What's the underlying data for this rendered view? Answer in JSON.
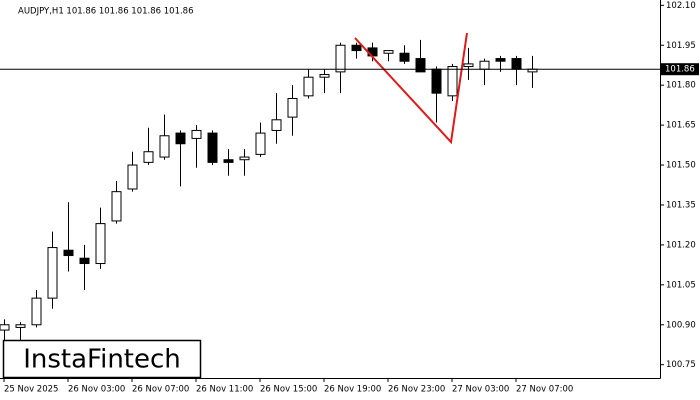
{
  "chart_data": {
    "type": "candlestick",
    "title": "AUDJPY,H1  101.86 101.86 101.86 101.86",
    "watermark": "InstaFintech",
    "categories": [
      "25 Nov 2025",
      null,
      null,
      null,
      "26 Nov 03:00",
      null,
      null,
      null,
      "26 Nov 07:00",
      null,
      null,
      null,
      "26 Nov 11:00",
      null,
      null,
      null,
      "26 Nov 15:00",
      null,
      null,
      null,
      "26 Nov 19:00",
      null,
      null,
      null,
      "26 Nov 23:00",
      null,
      null,
      null,
      "27 Nov 03:00",
      null,
      null,
      null,
      "27 Nov 07:00",
      null
    ],
    "open": [
      100.88,
      100.89,
      100.9,
      101.0,
      101.18,
      101.15,
      101.13,
      101.29,
      101.41,
      101.51,
      101.53,
      101.62,
      101.6,
      101.62,
      101.52,
      101.52,
      101.54,
      101.63,
      101.68,
      101.76,
      101.83,
      101.85,
      101.95,
      101.94,
      101.92,
      101.92,
      101.9,
      101.86,
      101.76,
      101.87,
      101.86,
      101.9,
      101.9,
      101.85
    ],
    "high": [
      100.92,
      100.91,
      101.03,
      101.25,
      101.36,
      101.2,
      101.34,
      101.44,
      101.55,
      101.64,
      101.69,
      101.63,
      101.65,
      101.63,
      101.56,
      101.56,
      101.66,
      101.77,
      101.8,
      101.86,
      101.86,
      101.96,
      101.96,
      101.96,
      101.93,
      101.95,
      101.97,
      101.87,
      101.88,
      101.94,
      101.9,
      101.91,
      101.91,
      101.91
    ],
    "low": [
      100.83,
      100.84,
      100.89,
      100.96,
      101.1,
      101.03,
      101.11,
      101.28,
      101.4,
      101.5,
      101.52,
      101.42,
      101.49,
      101.5,
      101.46,
      101.46,
      101.53,
      101.58,
      101.61,
      101.75,
      101.77,
      101.77,
      101.9,
      101.89,
      101.89,
      101.88,
      101.85,
      101.66,
      101.74,
      101.82,
      101.8,
      101.85,
      101.8,
      101.79
    ],
    "close": [
      100.9,
      100.9,
      101.0,
      101.19,
      101.16,
      101.13,
      101.28,
      101.4,
      101.5,
      101.55,
      101.61,
      101.58,
      101.63,
      101.51,
      101.51,
      101.53,
      101.62,
      101.67,
      101.75,
      101.83,
      101.84,
      101.95,
      101.93,
      101.91,
      101.93,
      101.89,
      101.85,
      101.77,
      101.87,
      101.88,
      101.89,
      101.89,
      101.86,
      101.86
    ],
    "up_color": "#ffffff",
    "down_color": "#000000",
    "current_price": 101.86,
    "ylim": [
      100.7,
      102.12
    ],
    "yticks": [
      {
        "value": 102.1,
        "label": "102.10"
      },
      101.95,
      {
        "value": 101.8,
        "label": "101.80"
      },
      101.65,
      {
        "value": 101.5,
        "label": "101.50"
      },
      101.35,
      {
        "value": 101.2,
        "label": "101.20"
      },
      101.05,
      {
        "value": 100.9,
        "label": "100.90"
      },
      100.75
    ]
  }
}
